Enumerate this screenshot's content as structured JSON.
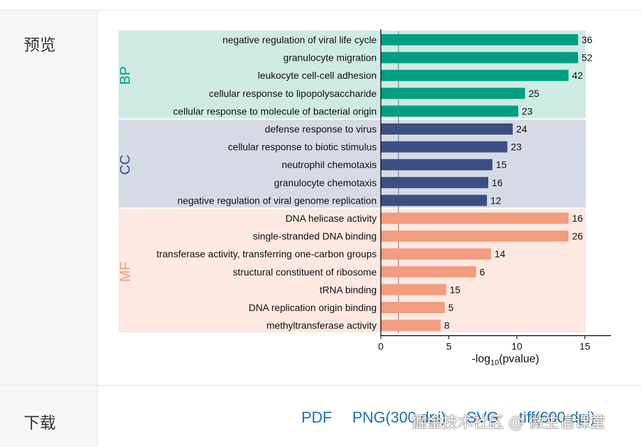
{
  "labels": {
    "preview": "预览",
    "download": "下载"
  },
  "downloads": [
    "PDF",
    "PNG(300 dpi)",
    "SVG",
    "tiff(600 dpi)"
  ],
  "watermark": "掘金技术社区 @ 微生信课堂",
  "colors": {
    "BP": "#009e82",
    "CC": "#3b4f82",
    "MF": "#f29c80",
    "BP_bg": "#cdebe3",
    "CC_bg": "#d6dae5",
    "MF_bg": "#fde8e2"
  },
  "chart_data": {
    "type": "bar",
    "orientation": "horizontal",
    "xlabel": "-log10(pvalue)",
    "xlim": [
      0,
      17
    ],
    "xticks": [
      0,
      5,
      10,
      15
    ],
    "reference_line": 1.3,
    "groups": [
      {
        "name": "BP",
        "terms": [
          {
            "label": "negative regulation of viral life cycle",
            "value": 14.5,
            "count": 36
          },
          {
            "label": "granulocyte migration",
            "value": 14.5,
            "count": 52
          },
          {
            "label": "leukocyte cell-cell adhesion",
            "value": 13.8,
            "count": 42
          },
          {
            "label": "cellular response to lipopolysaccharide",
            "value": 10.6,
            "count": 25
          },
          {
            "label": "cellular response to molecule of bacterial origin",
            "value": 10.1,
            "count": 23
          }
        ]
      },
      {
        "name": "CC",
        "terms": [
          {
            "label": "defense response to virus",
            "value": 9.7,
            "count": 24
          },
          {
            "label": "cellular response to biotic stimulus",
            "value": 9.3,
            "count": 23
          },
          {
            "label": "neutrophil chemotaxis",
            "value": 8.2,
            "count": 15
          },
          {
            "label": "granulocyte chemotaxis",
            "value": 7.9,
            "count": 16
          },
          {
            "label": "negative regulation of viral genome replication",
            "value": 7.8,
            "count": 12
          }
        ]
      },
      {
        "name": "MF",
        "terms": [
          {
            "label": "DNA helicase activity",
            "value": 13.8,
            "count": 16
          },
          {
            "label": "single-stranded DNA binding",
            "value": 13.8,
            "count": 26
          },
          {
            "label": "transferase activity, transferring one-carbon groups",
            "value": 8.1,
            "count": 14
          },
          {
            "label": "structural constituent of ribosome",
            "value": 7.0,
            "count": 6
          },
          {
            "label": "tRNA binding",
            "value": 4.8,
            "count": 15
          },
          {
            "label": "DNA replication origin binding",
            "value": 4.7,
            "count": 5
          },
          {
            "label": "methyltransferase activity",
            "value": 4.4,
            "count": 8
          }
        ]
      }
    ]
  }
}
